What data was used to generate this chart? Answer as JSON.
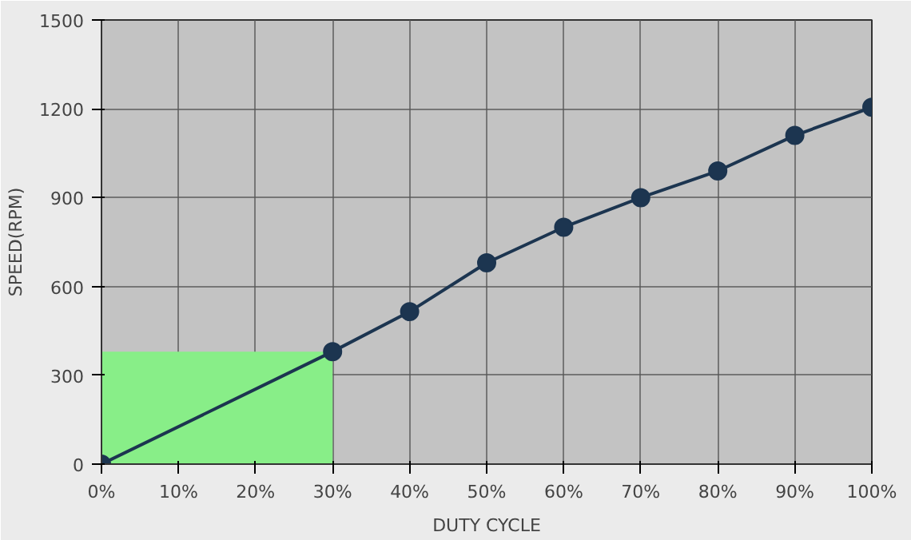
{
  "chart_data": {
    "type": "line",
    "xlabel": "DUTY CYCLE",
    "ylabel": "SPEED(RPM)",
    "x": [
      0,
      30,
      40,
      50,
      60,
      70,
      80,
      90,
      100
    ],
    "series": [
      {
        "type": "area",
        "x": [
          0,
          30
        ],
        "values": [
          380,
          380
        ],
        "color": "#88ee88",
        "marker": "none"
      },
      {
        "color": "#1c3550",
        "values": [
          0,
          380,
          515,
          680,
          800,
          900,
          990,
          1110,
          1205
        ]
      }
    ],
    "xlim": [
      0,
      100
    ],
    "ylim": [
      0,
      1500
    ],
    "xticks": [
      {
        "value": 0,
        "label": "0%"
      },
      {
        "value": 10,
        "label": "10%"
      },
      {
        "value": 20,
        "label": "20%"
      },
      {
        "value": 30,
        "label": "30%"
      },
      {
        "value": 40,
        "label": "40%"
      },
      {
        "value": 50,
        "label": "50%"
      },
      {
        "value": 60,
        "label": "60%"
      },
      {
        "value": 70,
        "label": "70%"
      },
      {
        "value": 80,
        "label": "80%"
      },
      {
        "value": 90,
        "label": "90%"
      },
      {
        "value": 100,
        "label": "100%"
      }
    ],
    "yticks": [
      0,
      300,
      600,
      900,
      1200,
      1500
    ],
    "grid": true,
    "marker": "circle",
    "line_style": "solid"
  }
}
